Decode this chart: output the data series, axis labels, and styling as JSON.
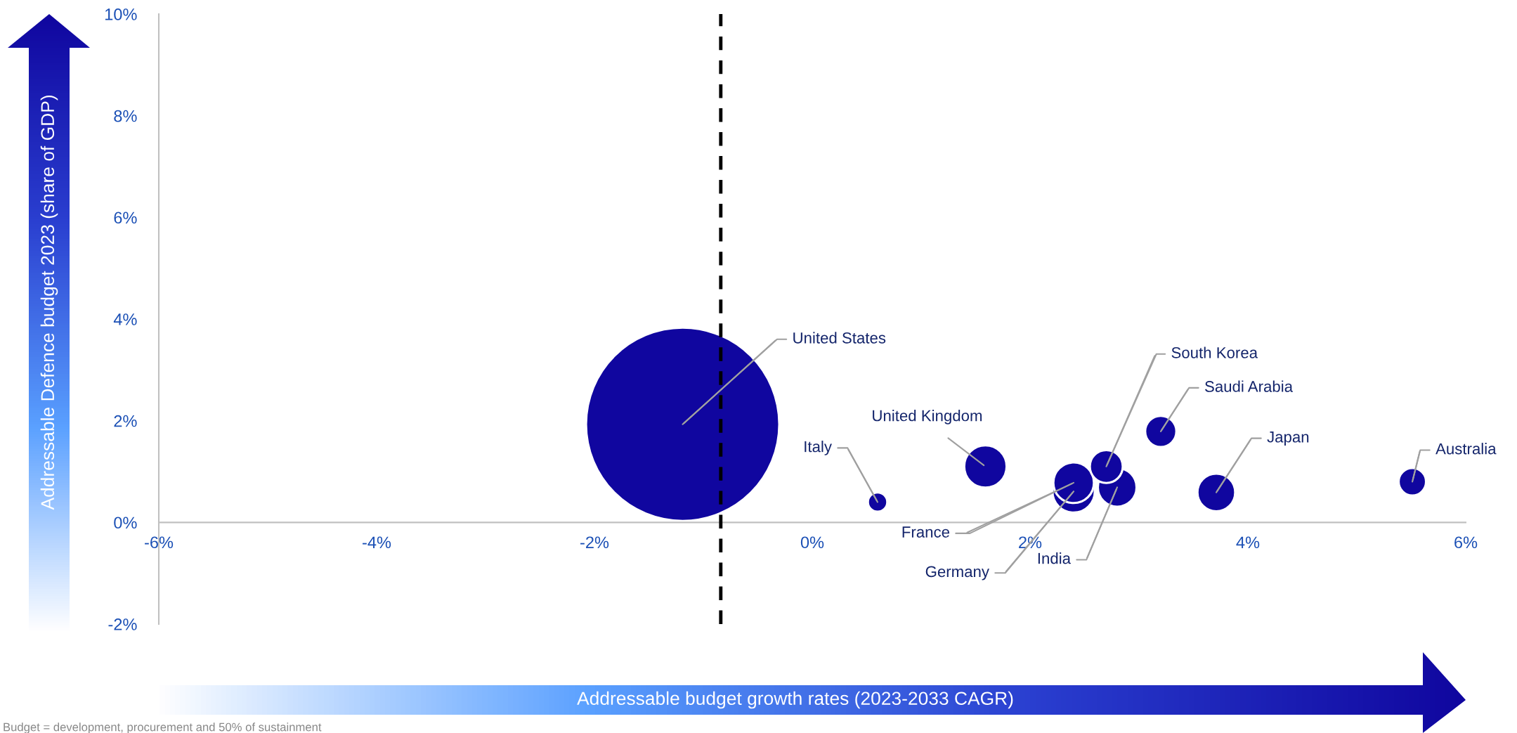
{
  "chart_data": {
    "type": "bubble",
    "xlabel": "Addressable budget growth rates (2023-2033 CAGR)",
    "ylabel": "Addressable Defence budget 2023 (share of GDP)",
    "xlim": [
      -6,
      6
    ],
    "xticks": [
      {
        "value": -6,
        "label": "-6%"
      },
      {
        "value": -4,
        "label": "-4%"
      },
      {
        "value": -2,
        "label": "-2%"
      },
      {
        "value": 0,
        "label": "0%"
      },
      {
        "value": 2,
        "label": "2%"
      },
      {
        "value": 4,
        "label": "4%"
      },
      {
        "value": 6,
        "label": "6%"
      }
    ],
    "ylim": [
      -2,
      10
    ],
    "yticks": [
      {
        "value": -2,
        "label": "-2%"
      },
      {
        "value": 0,
        "label": "0%"
      },
      {
        "value": 2,
        "label": "2%"
      },
      {
        "value": 4,
        "label": "4%"
      },
      {
        "value": 6,
        "label": "6%"
      },
      {
        "value": 8,
        "label": "8%"
      },
      {
        "value": 10,
        "label": "10%"
      }
    ],
    "grid": false,
    "series": [
      {
        "name": "United States",
        "color": "#10069f",
        "x": [
          -1.19
        ],
        "values": [
          1.93
        ],
        "sizes": [
          1
        ]
      },
      {
        "name": "Italy",
        "color": "#10069f",
        "x": [
          0.6
        ],
        "values": [
          0.4
        ],
        "sizes": [
          0.01
        ]
      },
      {
        "name": "United Kingdom",
        "color": "#10069f",
        "x": [
          1.59
        ],
        "values": [
          1.1
        ],
        "sizes": [
          0.048
        ]
      },
      {
        "name": "Germany",
        "color": "#10069f",
        "x": [
          2.4
        ],
        "values": [
          0.61
        ],
        "sizes": [
          0.048
        ]
      },
      {
        "name": "France",
        "color": "#10069f",
        "x": [
          2.4
        ],
        "values": [
          0.78
        ],
        "sizes": [
          0.044
        ]
      },
      {
        "name": "India",
        "color": "#10069f",
        "x": [
          2.8
        ],
        "values": [
          0.69
        ],
        "sizes": [
          0.04
        ]
      },
      {
        "name": "South Korea",
        "color": "#10069f",
        "x": [
          2.7
        ],
        "values": [
          1.1
        ],
        "sizes": [
          0.029
        ]
      },
      {
        "name": "Saudi Arabia",
        "color": "#10069f",
        "x": [
          3.2
        ],
        "values": [
          1.79
        ],
        "sizes": [
          0.026
        ]
      },
      {
        "name": "Japan",
        "color": "#10069f",
        "x": [
          3.71
        ],
        "values": [
          0.59
        ],
        "sizes": [
          0.038
        ]
      },
      {
        "name": "Australia",
        "color": "#10069f",
        "x": [
          5.51
        ],
        "values": [
          0.8
        ],
        "sizes": [
          0.02
        ]
      }
    ],
    "ref_lines": [
      {
        "axis": "x",
        "value": -0.84,
        "color": "#000000",
        "line_style": "dashed"
      }
    ],
    "annotations": [
      "Budget = development, procurement and 50% of sustainment"
    ]
  }
}
